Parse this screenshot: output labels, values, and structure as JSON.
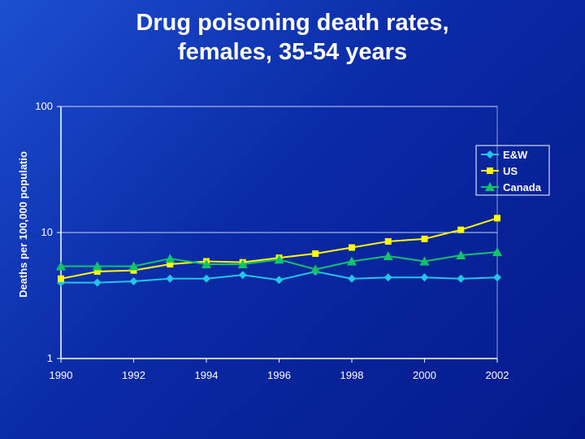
{
  "title_line1": "Drug poisoning death rates,",
  "title_line2": "females, 35-54 years",
  "chart_data": {
    "type": "line",
    "title": "Drug poisoning death rates, females, 35-54 years",
    "xlabel": "",
    "ylabel": "Deaths per 100,000 populatio",
    "y_scale": "log",
    "ylim": [
      1,
      100
    ],
    "xlim": [
      1990,
      2002
    ],
    "y_ticks": [
      1,
      10,
      100
    ],
    "y_tick_labels": [
      "1",
      "10",
      "100"
    ],
    "x_ticks": [
      1990,
      1992,
      1994,
      1996,
      1998,
      2000,
      2002
    ],
    "x_tick_labels": [
      "1990",
      "1992",
      "1994",
      "1996",
      "1998",
      "2000",
      "2002"
    ],
    "grid": "horizontal major",
    "legend_position": "top-right",
    "x": [
      1990,
      1991,
      1992,
      1993,
      1994,
      1995,
      1996,
      1997,
      1998,
      1999,
      2000,
      2001,
      2002
    ],
    "series": [
      {
        "name": "E&W",
        "color": "#22c6e6",
        "marker": "diamond",
        "values": [
          4.0,
          4.0,
          4.1,
          4.3,
          4.3,
          4.6,
          4.2,
          4.9,
          4.3,
          4.4,
          4.4,
          4.3,
          4.4
        ]
      },
      {
        "name": "US",
        "color": "#ffff00",
        "marker": "square",
        "values": [
          4.3,
          4.9,
          5.0,
          5.6,
          5.9,
          5.8,
          6.3,
          6.8,
          7.6,
          8.5,
          8.9,
          10.5,
          13.0
        ]
      },
      {
        "name": "Canada",
        "color": "#11c46a",
        "marker": "triangle",
        "values": [
          5.4,
          5.4,
          5.4,
          6.2,
          5.6,
          5.6,
          6.1,
          5.1,
          5.9,
          6.5,
          5.9,
          6.6,
          7.0
        ]
      }
    ]
  }
}
